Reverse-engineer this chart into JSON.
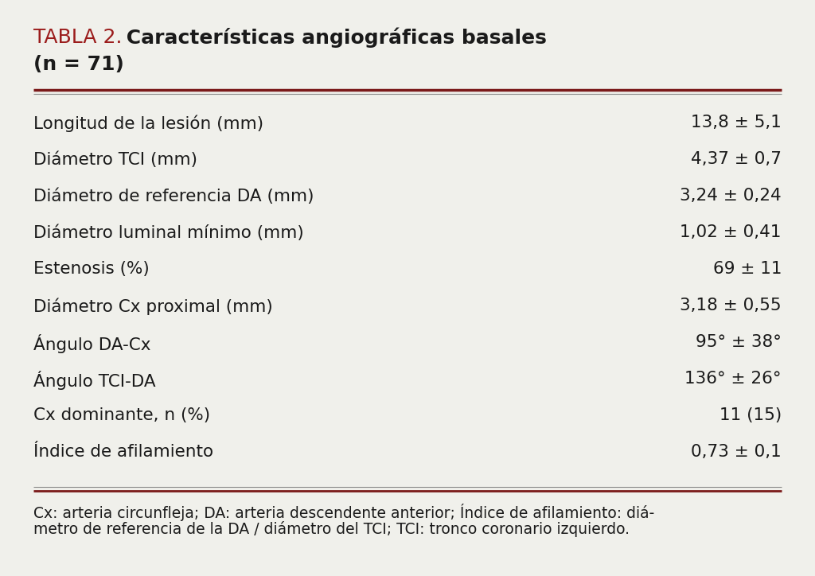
{
  "title_prefix": "TABLA 2.",
  "title_bold": " Características angiográficas basales",
  "title_line2": "(n = 71)",
  "title_prefix_color": "#9B1C1C",
  "title_bold_color": "#1a1a1a",
  "rows": [
    [
      "Longitud de la lesión (mm)",
      "13,8 ± 5,1"
    ],
    [
      "Diámetro TCI (mm)",
      "4,37 ± 0,7"
    ],
    [
      "Diámetro de referencia DA (mm)",
      "3,24 ± 0,24"
    ],
    [
      "Diámetro luminal mínimo (mm)",
      "1,02 ± 0,41"
    ],
    [
      "Estenosis (%)",
      "69 ± 11"
    ],
    [
      "Diámetro Cx proximal (mm)",
      "3,18 ± 0,55"
    ],
    [
      "Ángulo DA-Cx",
      "95° ± 38°"
    ],
    [
      "Ángulo TCI-DA",
      "136° ± 26°"
    ],
    [
      "Cx dominante, n (%)",
      "11 (15)"
    ],
    [
      "Índice de afilamiento",
      "0,73 ± 0,1"
    ]
  ],
  "footnote_line1": "Cx: arteria circunfleja; DA: arteria descendente anterior; Índice de afilamiento: diá-",
  "footnote_line2": "metro de referencia de la DA / diámetro del TCI; TCI: tronco coronario izquierdo.",
  "bg_color": "#f0f0eb",
  "text_color": "#1a1a1a",
  "thick_line_color": "#7B1A1A",
  "thin_line_color": "#888888",
  "title_prefix_fontsize": 18,
  "title_bold_fontsize": 18,
  "row_fontsize": 15.5,
  "footnote_fontsize": 13.5
}
